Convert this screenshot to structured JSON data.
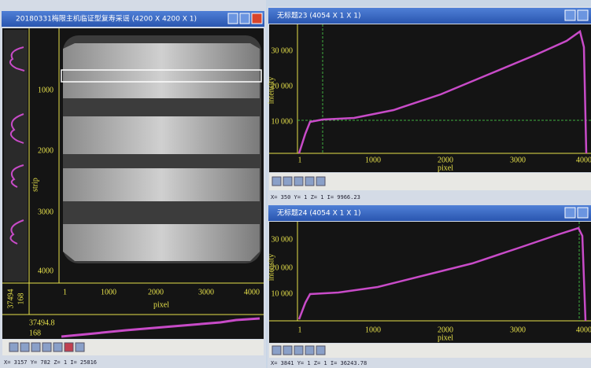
{
  "windows": [
    {
      "title": "20180331梅限主机临证型复寿采谣 (4200 X 4200 X 1)",
      "plot": {
        "y_label": "strip",
        "x_label": "pixel",
        "y_ticks": [
          "1000",
          "2000",
          "3000",
          "4000"
        ],
        "x_ticks": [
          "1",
          "1000",
          "2000",
          "3000",
          "4000"
        ],
        "corner_values": [
          "37494",
          "168"
        ],
        "profile_values": [
          "37494.8",
          "168"
        ]
      },
      "status": "X= 3157 Y= 782 Z= 1 I= 25816"
    },
    {
      "title": "无标题23 (4054 X 1 X 1)",
      "plot": {
        "y_label": "intensity",
        "x_label": "pixel",
        "y_ticks": [
          "30 000",
          "20 000",
          "10 000"
        ],
        "x_ticks": [
          "1",
          "1000",
          "2000",
          "3000",
          "4000"
        ]
      },
      "status": "X= 350 Y= 1 Z= 1 I= 9966.23"
    },
    {
      "title": "无标题24 (4054 X 1 X 1)",
      "plot": {
        "y_label": "intensity",
        "x_label": "pixel",
        "y_ticks": [
          "30 000",
          "20 000",
          "10 000"
        ],
        "x_ticks": [
          "1",
          "1000",
          "2000",
          "3000",
          "4000"
        ]
      },
      "status": "X= 3841 Y= 1 Z= 1 I= 36243.78"
    }
  ]
}
